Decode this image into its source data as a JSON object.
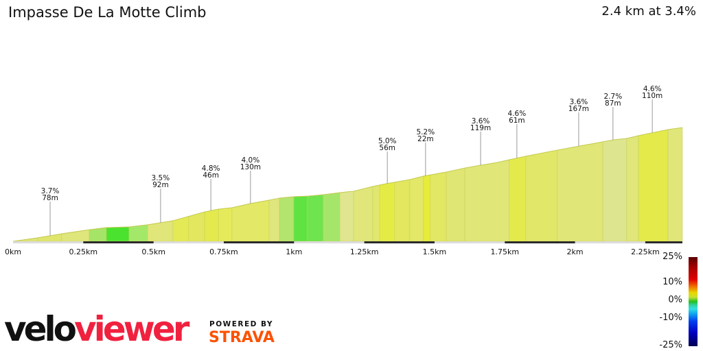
{
  "header": {
    "title": "Impasse De La Motte Climb",
    "summary": "2.4 km at 3.4%"
  },
  "chart_data": {
    "type": "area",
    "title": "Impasse De La Motte Climb",
    "xlabel": "",
    "ylabel": "",
    "xlim": [
      0,
      2.4
    ],
    "x_tick_labels": [
      "0km",
      "0.25km",
      "0.5km",
      "0.75km",
      "1km",
      "1.25km",
      "1.5km",
      "1.75km",
      "2km",
      "2.25km"
    ],
    "x_ticks": [
      0,
      0.25,
      0.5,
      0.75,
      1,
      1.25,
      1.5,
      1.75,
      2,
      2.25
    ],
    "profile_km": [
      0,
      0.088,
      0.173,
      0.271,
      0.332,
      0.413,
      0.479,
      0.569,
      0.682,
      0.73,
      0.779,
      0.845,
      0.911,
      0.948,
      0.999,
      1.048,
      1.104,
      1.163,
      1.212,
      1.28,
      1.329,
      1.412,
      1.461,
      1.542,
      1.608,
      1.664,
      1.725,
      1.766,
      1.825,
      1.937,
      2.016,
      2.099,
      2.136,
      2.184,
      2.226,
      2.331,
      2.382
    ],
    "profile_elev_m": [
      0,
      2.5,
      5.4,
      8.3,
      9.8,
      10.3,
      11.8,
      14.7,
      21,
      23,
      24,
      27,
      29.4,
      30.9,
      31.9,
      32.3,
      33.3,
      34.8,
      35.8,
      39.2,
      41.2,
      44.1,
      46.6,
      49.5,
      52.4,
      54.4,
      56.4,
      58.3,
      60.8,
      65.2,
      68.1,
      71.1,
      72.5,
      73.5,
      75.5,
      79.9,
      81.3
    ],
    "segments": [
      {
        "from": 0,
        "to": 0.088,
        "color": "#dfe57a"
      },
      {
        "from": 0.088,
        "to": 0.173,
        "color": "#e0e56e"
      },
      {
        "from": 0.173,
        "to": 0.271,
        "color": "#dfe67b"
      },
      {
        "from": 0.271,
        "to": 0.332,
        "color": "#a5e466"
      },
      {
        "from": 0.332,
        "to": 0.413,
        "color": "#4ae22f"
      },
      {
        "from": 0.413,
        "to": 0.479,
        "color": "#a4e86a"
      },
      {
        "from": 0.479,
        "to": 0.569,
        "color": "#e0e67a"
      },
      {
        "from": 0.569,
        "to": 0.625,
        "color": "#e4ea55"
      },
      {
        "from": 0.625,
        "to": 0.682,
        "color": "#e2e75f"
      },
      {
        "from": 0.682,
        "to": 0.731,
        "color": "#e4ea4d"
      },
      {
        "from": 0.731,
        "to": 0.779,
        "color": "#e4ea5a"
      },
      {
        "from": 0.779,
        "to": 0.911,
        "color": "#e3e866"
      },
      {
        "from": 0.911,
        "to": 0.948,
        "color": "#e0e67e"
      },
      {
        "from": 0.948,
        "to": 0.999,
        "color": "#b2e46e"
      },
      {
        "from": 0.999,
        "to": 1.048,
        "color": "#5fe342"
      },
      {
        "from": 1.048,
        "to": 1.104,
        "color": "#6ee44e"
      },
      {
        "from": 1.104,
        "to": 1.163,
        "color": "#a5e66a"
      },
      {
        "from": 1.163,
        "to": 1.212,
        "color": "#dfe68f"
      },
      {
        "from": 1.212,
        "to": 1.28,
        "color": "#e0e67a"
      },
      {
        "from": 1.28,
        "to": 1.305,
        "color": "#e0e66e"
      },
      {
        "from": 1.305,
        "to": 1.358,
        "color": "#e5eb45"
      },
      {
        "from": 1.358,
        "to": 1.412,
        "color": "#e2e75f"
      },
      {
        "from": 1.412,
        "to": 1.461,
        "color": "#e3e868"
      },
      {
        "from": 1.461,
        "to": 1.485,
        "color": "#e7ec3a"
      },
      {
        "from": 1.485,
        "to": 1.542,
        "color": "#e2e764"
      },
      {
        "from": 1.542,
        "to": 1.608,
        "color": "#e0e673"
      },
      {
        "from": 1.608,
        "to": 1.766,
        "color": "#e0e677"
      },
      {
        "from": 1.766,
        "to": 1.825,
        "color": "#e4ea4c"
      },
      {
        "from": 1.825,
        "to": 1.937,
        "color": "#e1e769"
      },
      {
        "from": 1.937,
        "to": 2.099,
        "color": "#e0e677"
      },
      {
        "from": 2.099,
        "to": 2.184,
        "color": "#dee58f"
      },
      {
        "from": 2.184,
        "to": 2.226,
        "color": "#e0e67a"
      },
      {
        "from": 2.226,
        "to": 2.331,
        "color": "#e4ea4a"
      },
      {
        "from": 2.331,
        "to": 2.382,
        "color": "#e0e67a"
      }
    ],
    "annotations": [
      {
        "km": 0.132,
        "grade": "3.7%",
        "length": "78m"
      },
      {
        "km": 0.525,
        "grade": "3.5%",
        "length": "92m"
      },
      {
        "km": 0.704,
        "grade": "4.8%",
        "length": "46m"
      },
      {
        "km": 0.845,
        "grade": "4.0%",
        "length": "130m"
      },
      {
        "km": 1.332,
        "grade": "5.0%",
        "length": "56m"
      },
      {
        "km": 1.468,
        "grade": "5.2%",
        "length": "22m"
      },
      {
        "km": 1.664,
        "grade": "3.6%",
        "length": "119m"
      },
      {
        "km": 1.793,
        "grade": "4.6%",
        "length": "61m"
      },
      {
        "km": 2.013,
        "grade": "3.6%",
        "length": "167m"
      },
      {
        "km": 2.135,
        "grade": "2.7%",
        "length": "87m"
      },
      {
        "km": 2.275,
        "grade": "4.6%",
        "length": "110m"
      }
    ],
    "legend": {
      "type": "gradient-colorbar",
      "labels": [
        "25%",
        "10%",
        "0%",
        "-10%",
        "-25%"
      ]
    }
  },
  "brand": {
    "velo": "velo",
    "viewer": "viewer",
    "powered_by": "POWERED BY",
    "strava": "STRAVA",
    "velo_color": "#111111",
    "viewer_color": "#f0213f",
    "strava_color": "#fc5200"
  }
}
